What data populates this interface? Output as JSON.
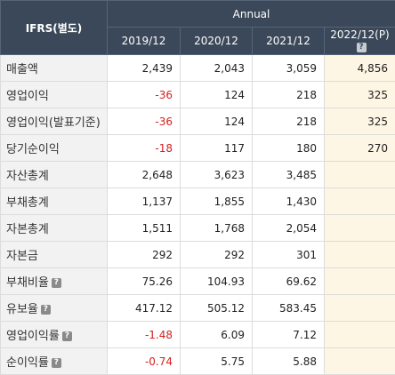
{
  "header": {
    "row_label": "IFRS(별도)",
    "group_label": "Annual",
    "periods": [
      "2019/12",
      "2020/12",
      "2021/12",
      "2022/12(P)"
    ]
  },
  "rows": [
    {
      "label": "매출액",
      "help": false,
      "values": [
        "2,439",
        "2,043",
        "3,059",
        "4,856"
      ],
      "neg": [
        false,
        false,
        false,
        false
      ]
    },
    {
      "label": "영업이익",
      "help": false,
      "values": [
        "-36",
        "124",
        "218",
        "325"
      ],
      "neg": [
        true,
        false,
        false,
        false
      ]
    },
    {
      "label": "영업이익(발표기준)",
      "help": false,
      "values": [
        "-36",
        "124",
        "218",
        "325"
      ],
      "neg": [
        true,
        false,
        false,
        false
      ]
    },
    {
      "label": "당기순이익",
      "help": false,
      "values": [
        "-18",
        "117",
        "180",
        "270"
      ],
      "neg": [
        true,
        false,
        false,
        false
      ]
    },
    {
      "label": "자산총계",
      "help": false,
      "values": [
        "2,648",
        "3,623",
        "3,485",
        ""
      ],
      "neg": [
        false,
        false,
        false,
        false
      ]
    },
    {
      "label": "부채총계",
      "help": false,
      "values": [
        "1,137",
        "1,855",
        "1,430",
        ""
      ],
      "neg": [
        false,
        false,
        false,
        false
      ]
    },
    {
      "label": "자본총계",
      "help": false,
      "values": [
        "1,511",
        "1,768",
        "2,054",
        ""
      ],
      "neg": [
        false,
        false,
        false,
        false
      ]
    },
    {
      "label": "자본금",
      "help": false,
      "values": [
        "292",
        "292",
        "301",
        ""
      ],
      "neg": [
        false,
        false,
        false,
        false
      ]
    },
    {
      "label": "부채비율",
      "help": true,
      "values": [
        "75.26",
        "104.93",
        "69.62",
        ""
      ],
      "neg": [
        false,
        false,
        false,
        false
      ]
    },
    {
      "label": "유보율",
      "help": true,
      "values": [
        "417.12",
        "505.12",
        "583.45",
        ""
      ],
      "neg": [
        false,
        false,
        false,
        false
      ]
    },
    {
      "label": "영업이익률",
      "help": true,
      "values": [
        "-1.48",
        "6.09",
        "7.12",
        ""
      ],
      "neg": [
        true,
        false,
        false,
        false
      ]
    },
    {
      "label": "순이익률",
      "help": true,
      "values": [
        "-0.74",
        "5.75",
        "5.88",
        ""
      ],
      "neg": [
        true,
        false,
        false,
        false
      ]
    }
  ],
  "help_icon": "question-mark-icon",
  "colors": {
    "header_bg": "#3a4859",
    "label_bg": "#f2f2f2",
    "estimate_bg": "#fdf6e5",
    "negative": "#d62020"
  }
}
